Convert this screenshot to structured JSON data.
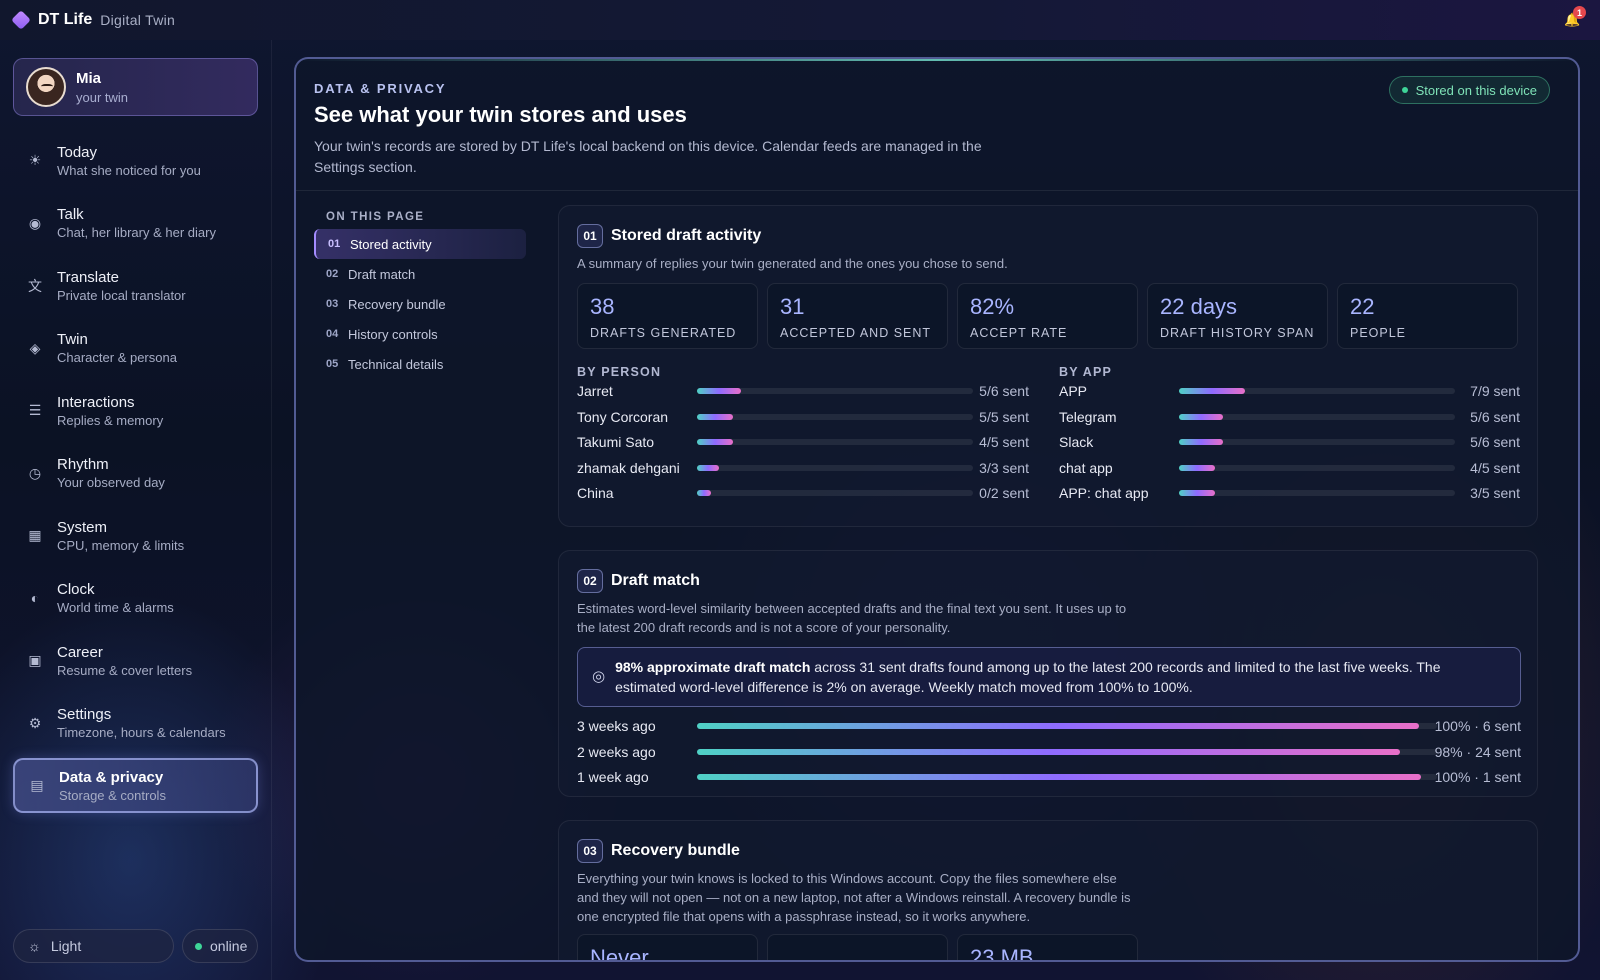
{
  "app": {
    "brand": "DT Life",
    "subtitle": "Digital Twin",
    "notifications": "1"
  },
  "profile": {
    "name": "Mia",
    "sub": "your twin"
  },
  "nav": [
    {
      "label": "Today",
      "sub": "What she noticed for you",
      "icon": "sun-icon",
      "glyph": "☀"
    },
    {
      "label": "Talk",
      "sub": "Chat, her library & her diary",
      "icon": "chat-icon",
      "glyph": "◉"
    },
    {
      "label": "Translate",
      "sub": "Private local translator",
      "icon": "translate-icon",
      "glyph": "文"
    },
    {
      "label": "Twin",
      "sub": "Character & persona",
      "icon": "diamond-icon",
      "glyph": "◈"
    },
    {
      "label": "Interactions",
      "sub": "Replies & memory",
      "icon": "list-icon",
      "glyph": "☰"
    },
    {
      "label": "Rhythm",
      "sub": "Your observed day",
      "icon": "clock-icon",
      "glyph": "◷"
    },
    {
      "label": "System",
      "sub": "CPU, memory & limits",
      "icon": "chip-icon",
      "glyph": "▦"
    },
    {
      "label": "Clock",
      "sub": "World time & alarms",
      "icon": "half-circle-icon",
      "glyph": "◐"
    },
    {
      "label": "Career",
      "sub": "Resume & cover letters",
      "icon": "briefcase-icon",
      "glyph": "▣"
    },
    {
      "label": "Settings",
      "sub": "Timezone, hours & calendars",
      "icon": "gear-icon",
      "glyph": "⚙"
    },
    {
      "label": "Data & privacy",
      "sub": "Storage & controls",
      "icon": "database-icon",
      "glyph": "▤"
    }
  ],
  "footer": {
    "theme": "Light",
    "status": "online"
  },
  "header": {
    "eyebrow": "DATA & PRIVACY",
    "title": "See what your twin stores and uses",
    "desc": "Your twin's records are stored by DT Life's local backend on this device. Calendar feeds are managed in the Settings section.",
    "badge": "Stored on this device"
  },
  "toc": {
    "title": "ON THIS PAGE",
    "items": [
      {
        "num": "01",
        "label": "Stored activity"
      },
      {
        "num": "02",
        "label": "Draft match"
      },
      {
        "num": "03",
        "label": "Recovery bundle"
      },
      {
        "num": "04",
        "label": "History controls"
      },
      {
        "num": "05",
        "label": "Technical details"
      }
    ]
  },
  "section1": {
    "num": "01",
    "title": "Stored draft activity",
    "desc": "A summary of replies your twin generated and the ones you chose to send.",
    "stats": [
      {
        "value": "38",
        "label": "DRAFTS GENERATED"
      },
      {
        "value": "31",
        "label": "ACCEPTED AND SENT"
      },
      {
        "value": "82%",
        "label": "ACCEPT RATE"
      },
      {
        "value": "22 days",
        "label": "DRAFT HISTORY SPAN"
      },
      {
        "value": "22",
        "label": "PEOPLE"
      }
    ],
    "by_person_title": "BY PERSON",
    "by_person": [
      {
        "name": "Jarret",
        "value": "5/6 sent",
        "fraction": 0.16
      },
      {
        "name": "Tony Corcoran",
        "value": "5/5 sent",
        "fraction": 0.13
      },
      {
        "name": "Takumi Sato",
        "value": "4/5 sent",
        "fraction": 0.13
      },
      {
        "name": "zhamak dehgani",
        "value": "3/3 sent",
        "fraction": 0.08
      },
      {
        "name": "China",
        "value": "0/2 sent",
        "fraction": 0.05
      }
    ],
    "by_app_title": "BY APP",
    "by_app": [
      {
        "name": "APP",
        "value": "7/9 sent",
        "fraction": 0.24
      },
      {
        "name": "Telegram",
        "value": "5/6 sent",
        "fraction": 0.16
      },
      {
        "name": "Slack",
        "value": "5/6 sent",
        "fraction": 0.16
      },
      {
        "name": "chat app",
        "value": "4/5 sent",
        "fraction": 0.13
      },
      {
        "name": "APP: chat app",
        "value": "3/5 sent",
        "fraction": 0.13
      }
    ]
  },
  "section2": {
    "num": "02",
    "title": "Draft match",
    "desc": "Estimates word-level similarity between accepted drafts and the final text you sent. It uses up to the latest 200 draft records and is not a score of your personality.",
    "highlight_bold": "98% approximate draft match",
    "highlight_rest": " across 31 sent drafts found among up to the latest 200 records and limited to the last five weeks. The estimated word-level difference is 2% on average. Weekly match moved from 100% to 100%.",
    "weeks": [
      {
        "name": "3 weeks ago",
        "value": "100% · 6 sent",
        "fraction": 0.975
      },
      {
        "name": "2 weeks ago",
        "value": "98% · 24 sent",
        "fraction": 0.95
      },
      {
        "name": "1 week ago",
        "value": "100% · 1 sent",
        "fraction": 0.978
      }
    ]
  },
  "section3": {
    "num": "03",
    "title": "Recovery bundle",
    "desc": "Everything your twin knows is locked to this Windows account. Copy the files somewhere else and they will not open — not on a new laptop, not after a Windows reinstall. A recovery bundle is one encrypted file that opens with a passphrase instead, so it works anywhere.",
    "stats": [
      "Never",
      "",
      "23 MB"
    ]
  }
}
